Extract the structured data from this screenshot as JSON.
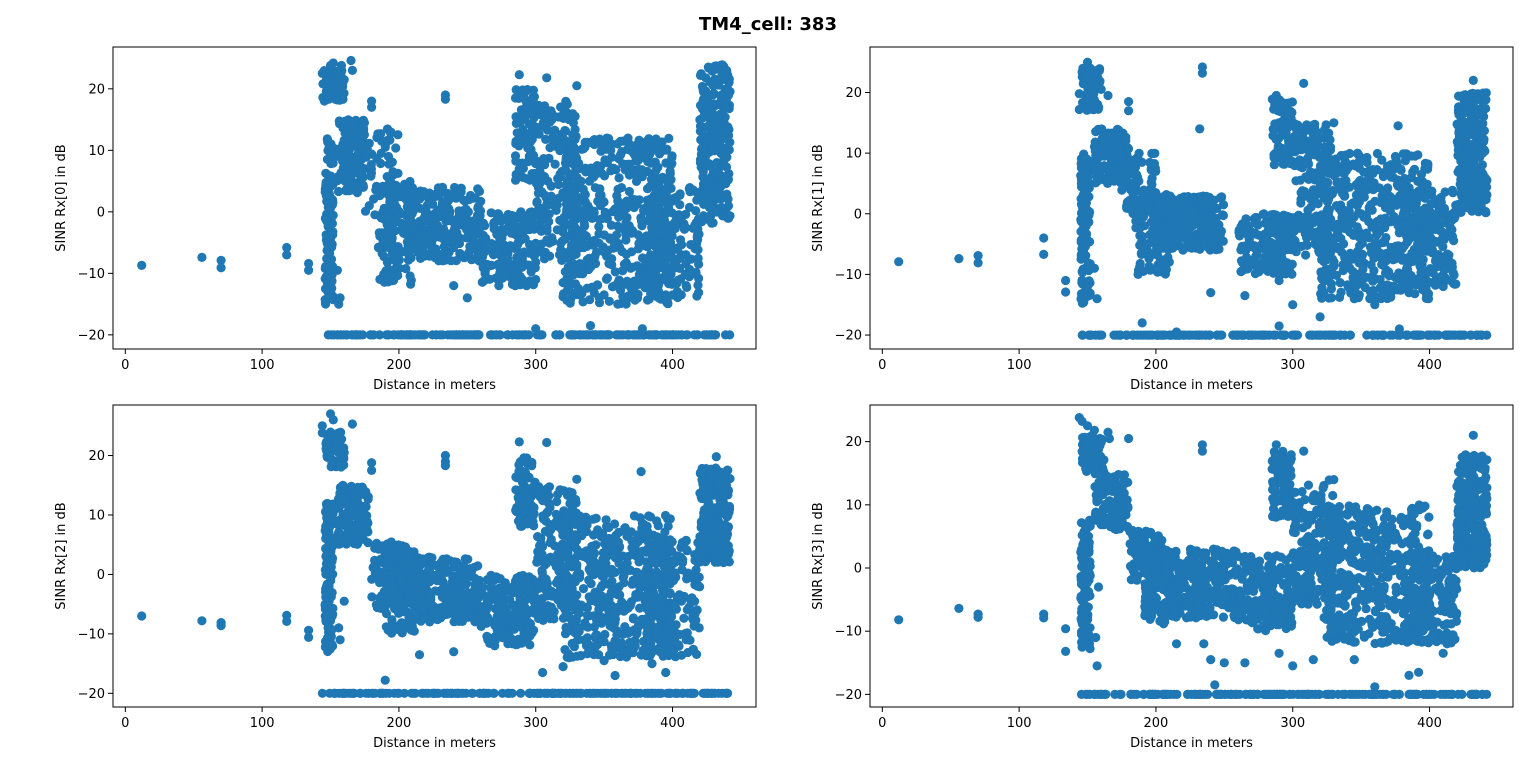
{
  "figure": {
    "title": "TM4_cell: 383"
  },
  "colors": {
    "marker": "#1f77b4",
    "axes": "#000000",
    "background": "#ffffff"
  },
  "chart_data": [
    {
      "type": "scatter",
      "title": "",
      "xlabel": "Distance in meters",
      "ylabel": "SINR Rx[0] in dB",
      "xlim": [
        -9,
        461
      ],
      "ylim": [
        -22.3,
        26.8
      ],
      "xticks": [
        0,
        100,
        200,
        300,
        400
      ],
      "yticks": [
        -20,
        -10,
        0,
        10,
        20
      ],
      "grid": false,
      "seed": 11,
      "points": [
        [
          12,
          -8.7
        ],
        [
          56,
          -7.4
        ],
        [
          70,
          -7.9
        ],
        [
          70,
          -9.1
        ],
        [
          118,
          -5.8
        ],
        [
          118,
          -7.0
        ],
        [
          134,
          -8.4
        ],
        [
          134,
          -9.5
        ],
        [
          144,
          22.5
        ],
        [
          146,
          21.0
        ],
        [
          150,
          23.8
        ],
        [
          152,
          24.2
        ],
        [
          158,
          23.8
        ],
        [
          160,
          21.5
        ],
        [
          165,
          24.6
        ],
        [
          166,
          23.0
        ],
        [
          180,
          18.0
        ],
        [
          180,
          17.0
        ],
        [
          234,
          19.0
        ],
        [
          234,
          18.3
        ],
        [
          288,
          22.3
        ],
        [
          308,
          21.8
        ],
        [
          330,
          20.5
        ],
        [
          150,
          -8.0
        ],
        [
          155,
          -9.5
        ],
        [
          156,
          -15.0
        ],
        [
          157,
          -14.0
        ],
        [
          240,
          -12.0
        ],
        [
          250,
          -14.0
        ],
        [
          285,
          -12.0
        ],
        [
          290,
          -9.0
        ],
        [
          300,
          -11.0
        ],
        [
          320,
          -11.5
        ],
        [
          350,
          -13.5
        ],
        [
          360,
          -15.0
        ],
        [
          390,
          -14.0
        ],
        [
          395,
          -13.5
        ],
        [
          410,
          -12.0
        ],
        [
          300,
          -19.0
        ],
        [
          340,
          -18.5
        ],
        [
          378,
          -19.0
        ]
      ],
      "clusters": [
        {
          "x": [
            146,
            152
          ],
          "y": [
            -15,
            12
          ],
          "n": 120
        },
        {
          "x": [
            144,
            160
          ],
          "y": [
            18,
            23
          ],
          "n": 60
        },
        {
          "x": [
            155,
            175
          ],
          "y": [
            3,
            15
          ],
          "n": 120
        },
        {
          "x": [
            175,
            200
          ],
          "y": [
            -2,
            14
          ],
          "n": 60
        },
        {
          "x": [
            185,
            210
          ],
          "y": [
            -12,
            5
          ],
          "n": 120
        },
        {
          "x": [
            205,
            260
          ],
          "y": [
            -8,
            4
          ],
          "n": 260
        },
        {
          "x": [
            260,
            300
          ],
          "y": [
            -12,
            0
          ],
          "n": 180
        },
        {
          "x": [
            285,
            300
          ],
          "y": [
            5,
            20
          ],
          "n": 80
        },
        {
          "x": [
            300,
            330
          ],
          "y": [
            -8,
            18
          ],
          "n": 180
        },
        {
          "x": [
            320,
            400
          ],
          "y": [
            -15,
            12
          ],
          "n": 480
        },
        {
          "x": [
            380,
            420
          ],
          "y": [
            -14,
            4
          ],
          "n": 180
        },
        {
          "x": [
            420,
            442
          ],
          "y": [
            -2,
            24
          ],
          "n": 260
        }
      ],
      "floor_band": {
        "y": -20,
        "x_start": 148,
        "x_end": 442,
        "n": 200
      }
    },
    {
      "type": "scatter",
      "title": "",
      "xlabel": "Distance in meters",
      "ylabel": "SINR Rx[1] in dB",
      "xlim": [
        -9,
        461
      ],
      "ylim": [
        -22.3,
        27.5
      ],
      "xticks": [
        0,
        100,
        200,
        300,
        400
      ],
      "yticks": [
        -20,
        -10,
        0,
        10,
        20
      ],
      "grid": false,
      "seed": 23,
      "points": [
        [
          12,
          -7.9
        ],
        [
          56,
          -7.4
        ],
        [
          70,
          -6.9
        ],
        [
          70,
          -8.1
        ],
        [
          118,
          -4.0
        ],
        [
          118,
          -6.7
        ],
        [
          134,
          -11.0
        ],
        [
          134,
          -12.9
        ],
        [
          144,
          19.8
        ],
        [
          144,
          17.2
        ],
        [
          150,
          25.0
        ],
        [
          152,
          24.0
        ],
        [
          160,
          20.5
        ],
        [
          165,
          19.5
        ],
        [
          180,
          18.5
        ],
        [
          180,
          17.0
        ],
        [
          234,
          24.2
        ],
        [
          234,
          23.2
        ],
        [
          232,
          14.0
        ],
        [
          288,
          19.5
        ],
        [
          308,
          21.5
        ],
        [
          330,
          15.0
        ],
        [
          377,
          14.5
        ],
        [
          432,
          22.0
        ],
        [
          150,
          -12.0
        ],
        [
          155,
          -9.0
        ],
        [
          157,
          -14.0
        ],
        [
          240,
          -13.0
        ],
        [
          265,
          -13.5
        ],
        [
          290,
          -11.0
        ],
        [
          300,
          -15.0
        ],
        [
          320,
          -17.0
        ],
        [
          345,
          -14.0
        ],
        [
          360,
          -15.0
        ],
        [
          385,
          -13.0
        ],
        [
          395,
          -12.5
        ],
        [
          410,
          -12.0
        ],
        [
          190,
          -18.0
        ],
        [
          215,
          -19.5
        ],
        [
          290,
          -18.5
        ],
        [
          378,
          -19.0
        ]
      ],
      "clusters": [
        {
          "x": [
            145,
            152
          ],
          "y": [
            -15,
            10
          ],
          "n": 120
        },
        {
          "x": [
            146,
            160
          ],
          "y": [
            17,
            24
          ],
          "n": 60
        },
        {
          "x": [
            155,
            180
          ],
          "y": [
            5,
            14
          ],
          "n": 140
        },
        {
          "x": [
            175,
            200
          ],
          "y": [
            0,
            10
          ],
          "n": 80
        },
        {
          "x": [
            185,
            210
          ],
          "y": [
            -10,
            4
          ],
          "n": 120
        },
        {
          "x": [
            200,
            250
          ],
          "y": [
            -6,
            3
          ],
          "n": 260
        },
        {
          "x": [
            260,
            300
          ],
          "y": [
            -10,
            0
          ],
          "n": 180
        },
        {
          "x": [
            285,
            300
          ],
          "y": [
            8,
            19
          ],
          "n": 80
        },
        {
          "x": [
            300,
            330
          ],
          "y": [
            -7,
            15
          ],
          "n": 180
        },
        {
          "x": [
            320,
            400
          ],
          "y": [
            -14,
            10
          ],
          "n": 480
        },
        {
          "x": [
            380,
            420
          ],
          "y": [
            -12,
            4
          ],
          "n": 180
        },
        {
          "x": [
            420,
            442
          ],
          "y": [
            0,
            20
          ],
          "n": 260
        }
      ],
      "floor_band": {
        "y": -20,
        "x_start": 145,
        "x_end": 442,
        "n": 200
      }
    },
    {
      "type": "scatter",
      "title": "",
      "xlabel": "Distance in meters",
      "ylabel": "SINR Rx[2] in dB",
      "xlim": [
        -9,
        461
      ],
      "ylim": [
        -22.3,
        28.5
      ],
      "xticks": [
        0,
        100,
        200,
        300,
        400
      ],
      "yticks": [
        -20,
        -10,
        0,
        10,
        20
      ],
      "grid": false,
      "seed": 37,
      "points": [
        [
          12,
          -7.0
        ],
        [
          56,
          -7.8
        ],
        [
          70,
          -8.1
        ],
        [
          70,
          -8.6
        ],
        [
          118,
          -6.9
        ],
        [
          118,
          -7.9
        ],
        [
          134,
          -9.4
        ],
        [
          134,
          -10.6
        ],
        [
          144,
          25.0
        ],
        [
          144,
          23.8
        ],
        [
          150,
          27.0
        ],
        [
          152,
          26.0
        ],
        [
          160,
          20.5
        ],
        [
          166,
          25.3
        ],
        [
          180,
          18.8
        ],
        [
          180,
          17.5
        ],
        [
          234,
          20.0
        ],
        [
          234,
          19.0
        ],
        [
          234,
          18.3
        ],
        [
          288,
          22.3
        ],
        [
          308,
          22.2
        ],
        [
          330,
          16.0
        ],
        [
          377,
          17.3
        ],
        [
          432,
          19.8
        ],
        [
          150,
          -12.0
        ],
        [
          156,
          -9.0
        ],
        [
          157,
          -11.0
        ],
        [
          160,
          -4.5
        ],
        [
          190,
          -17.8
        ],
        [
          215,
          -13.5
        ],
        [
          240,
          -13.0
        ],
        [
          270,
          -12.0
        ],
        [
          305,
          -16.5
        ],
        [
          320,
          -15.5
        ],
        [
          350,
          -14.5
        ],
        [
          358,
          -17.0
        ],
        [
          385,
          -15.0
        ],
        [
          395,
          -16.5
        ],
        [
          410,
          -11.0
        ]
      ],
      "clusters": [
        {
          "x": [
            146,
            152
          ],
          "y": [
            -13,
            12
          ],
          "n": 120
        },
        {
          "x": [
            146,
            160
          ],
          "y": [
            18,
            24
          ],
          "n": 60
        },
        {
          "x": [
            155,
            178
          ],
          "y": [
            5,
            15
          ],
          "n": 130
        },
        {
          "x": [
            180,
            205
          ],
          "y": [
            -6,
            6
          ],
          "n": 100
        },
        {
          "x": [
            190,
            215
          ],
          "y": [
            -10,
            4
          ],
          "n": 120
        },
        {
          "x": [
            205,
            260
          ],
          "y": [
            -8,
            3
          ],
          "n": 260
        },
        {
          "x": [
            260,
            300
          ],
          "y": [
            -12,
            0
          ],
          "n": 180
        },
        {
          "x": [
            285,
            300
          ],
          "y": [
            8,
            20
          ],
          "n": 80
        },
        {
          "x": [
            300,
            330
          ],
          "y": [
            -8,
            15
          ],
          "n": 180
        },
        {
          "x": [
            320,
            400
          ],
          "y": [
            -14,
            10
          ],
          "n": 480
        },
        {
          "x": [
            380,
            420
          ],
          "y": [
            -14,
            6
          ],
          "n": 180
        },
        {
          "x": [
            420,
            442
          ],
          "y": [
            2,
            18
          ],
          "n": 260
        }
      ],
      "floor_band": {
        "y": -20,
        "x_start": 142,
        "x_end": 442,
        "n": 200
      }
    },
    {
      "type": "scatter",
      "title": "",
      "xlabel": "Distance in meters",
      "ylabel": "SINR Rx[3] in dB",
      "xlim": [
        -9,
        461
      ],
      "ylim": [
        -22.0,
        25.8
      ],
      "xticks": [
        0,
        100,
        200,
        300,
        400
      ],
      "yticks": [
        -20,
        -10,
        0,
        10,
        20
      ],
      "grid": false,
      "seed": 53,
      "points": [
        [
          12,
          -8.2
        ],
        [
          56,
          -6.4
        ],
        [
          70,
          -7.3
        ],
        [
          70,
          -7.8
        ],
        [
          118,
          -7.3
        ],
        [
          118,
          -7.9
        ],
        [
          134,
          -9.6
        ],
        [
          134,
          -13.2
        ],
        [
          144,
          23.8
        ],
        [
          146,
          23.2
        ],
        [
          150,
          22.5
        ],
        [
          155,
          21.8
        ],
        [
          165,
          21.5
        ],
        [
          166,
          20.5
        ],
        [
          180,
          20.5
        ],
        [
          234,
          19.5
        ],
        [
          234,
          18.5
        ],
        [
          288,
          19.5
        ],
        [
          308,
          18.5
        ],
        [
          330,
          14.0
        ],
        [
          432,
          21.0
        ],
        [
          156,
          -11.0
        ],
        [
          157,
          -15.5
        ],
        [
          158,
          -3.0
        ],
        [
          215,
          -12.0
        ],
        [
          235,
          -12.0
        ],
        [
          240,
          -14.5
        ],
        [
          250,
          -15.0
        ],
        [
          265,
          -15.0
        ],
        [
          290,
          -13.5
        ],
        [
          300,
          -15.5
        ],
        [
          315,
          -14.5
        ],
        [
          345,
          -14.5
        ],
        [
          360,
          -18.8
        ],
        [
          385,
          -17.0
        ],
        [
          392,
          -16.5
        ],
        [
          410,
          -13.5
        ],
        [
          243,
          -18.5
        ]
      ],
      "clusters": [
        {
          "x": [
            145,
            152
          ],
          "y": [
            -13,
            8
          ],
          "n": 120
        },
        {
          "x": [
            146,
            162
          ],
          "y": [
            15,
            21
          ],
          "n": 70
        },
        {
          "x": [
            155,
            180
          ],
          "y": [
            6,
            15
          ],
          "n": 130
        },
        {
          "x": [
            180,
            205
          ],
          "y": [
            -2,
            6
          ],
          "n": 100
        },
        {
          "x": [
            190,
            215
          ],
          "y": [
            -9,
            3
          ],
          "n": 120
        },
        {
          "x": [
            205,
            260
          ],
          "y": [
            -8,
            3
          ],
          "n": 260
        },
        {
          "x": [
            260,
            300
          ],
          "y": [
            -10,
            2
          ],
          "n": 180
        },
        {
          "x": [
            285,
            300
          ],
          "y": [
            8,
            19
          ],
          "n": 80
        },
        {
          "x": [
            300,
            330
          ],
          "y": [
            -6,
            14
          ],
          "n": 180
        },
        {
          "x": [
            320,
            400
          ],
          "y": [
            -12,
            10
          ],
          "n": 480
        },
        {
          "x": [
            380,
            420
          ],
          "y": [
            -12,
            2
          ],
          "n": 180
        },
        {
          "x": [
            420,
            442
          ],
          "y": [
            0,
            18
          ],
          "n": 260
        }
      ],
      "floor_band": {
        "y": -20,
        "x_start": 145,
        "x_end": 442,
        "n": 200
      }
    }
  ]
}
